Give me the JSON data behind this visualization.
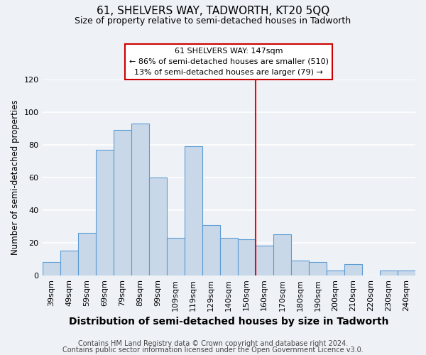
{
  "title": "61, SHELVERS WAY, TADWORTH, KT20 5QQ",
  "subtitle": "Size of property relative to semi-detached houses in Tadworth",
  "xlabel": "Distribution of semi-detached houses by size in Tadworth",
  "ylabel": "Number of semi-detached properties",
  "footer1": "Contains HM Land Registry data © Crown copyright and database right 2024.",
  "footer2": "Contains public sector information licensed under the Open Government Licence v3.0.",
  "bar_labels": [
    "39sqm",
    "49sqm",
    "59sqm",
    "69sqm",
    "79sqm",
    "89sqm",
    "99sqm",
    "109sqm",
    "119sqm",
    "129sqm",
    "140sqm",
    "150sqm",
    "160sqm",
    "170sqm",
    "180sqm",
    "190sqm",
    "200sqm",
    "210sqm",
    "220sqm",
    "230sqm",
    "240sqm"
  ],
  "bar_values": [
    8,
    15,
    26,
    77,
    89,
    93,
    60,
    23,
    79,
    31,
    23,
    22,
    18,
    25,
    9,
    8,
    3,
    7,
    0,
    3,
    3
  ],
  "bar_color": "#c8d8e8",
  "bar_edge_color": "#5b9bd5",
  "vline_color": "red",
  "annotation_title": "61 SHELVERS WAY: 147sqm",
  "annotation_line1": "← 86% of semi-detached houses are smaller (510)",
  "annotation_line2": "13% of semi-detached houses are larger (79) →",
  "annotation_box_color": "white",
  "annotation_box_edge": "#cc0000",
  "ylim": [
    0,
    120
  ],
  "yticks": [
    0,
    20,
    40,
    60,
    80,
    100,
    120
  ],
  "bg_color": "#eef2f7",
  "grid_color": "white",
  "title_fontsize": 11,
  "subtitle_fontsize": 9,
  "xlabel_fontsize": 10,
  "ylabel_fontsize": 8.5,
  "footer_fontsize": 7,
  "tick_fontsize": 8
}
